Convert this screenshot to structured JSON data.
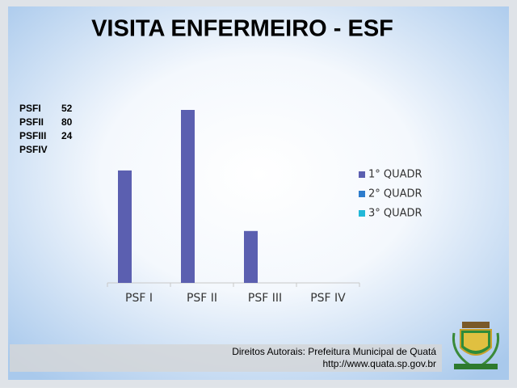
{
  "chart_data": {
    "type": "bar",
    "title": "VISITA ENFERMEIRO - ESF",
    "categories": [
      "PSF I",
      "PSF II",
      "PSF III",
      "PSF IV"
    ],
    "series": [
      {
        "name": "1° QUADR",
        "color": "#5b5fb0",
        "values": [
          52,
          80,
          24,
          null
        ]
      },
      {
        "name": "2° QUADR",
        "color": "#2e7ccc",
        "values": [
          null,
          null,
          null,
          null
        ]
      },
      {
        "name": "3° QUADR",
        "color": "#22b8d8",
        "values": [
          null,
          null,
          null,
          null
        ]
      }
    ],
    "legend": "right"
  },
  "side_list": [
    {
      "label": "PSFI",
      "value": 52
    },
    {
      "label": "PSFII",
      "value": 80
    },
    {
      "label": "PSFIII",
      "value": 24
    },
    {
      "label": "PSFIV",
      "value": null
    }
  ],
  "footer": {
    "credit": "Direitos Autorais: Prefeitura Municipal de Quatá",
    "url": "http://www.quata.sp.gov.br"
  }
}
